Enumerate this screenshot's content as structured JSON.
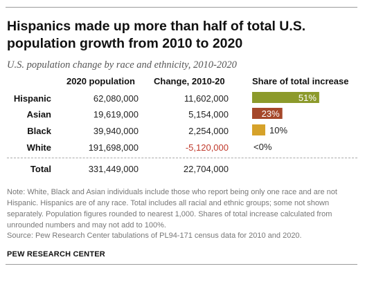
{
  "title": "Hispanics made up more than half of total U.S. population growth from 2010 to 2020",
  "subtitle": "U.S. population change by race and ethnicity, 2010-2020",
  "chart_data": {
    "type": "table",
    "columns": [
      "2020 population",
      "Change, 2010-20",
      "Share of total increase"
    ],
    "rows": [
      {
        "label": "Hispanic",
        "population": "62,080,000",
        "change": "11,602,000",
        "share": 51,
        "share_label": "51%",
        "color": "#8c9a2b"
      },
      {
        "label": "Asian",
        "population": "19,619,000",
        "change": "5,154,000",
        "share": 23,
        "share_label": "23%",
        "color": "#a5472a"
      },
      {
        "label": "Black",
        "population": "39,940,000",
        "change": "2,254,000",
        "share": 10,
        "share_label": "10%",
        "color": "#d6a22a"
      },
      {
        "label": "White",
        "population": "191,698,000",
        "change": "-5,120,000",
        "share": 0,
        "share_label": "<0%",
        "color": "#cccccc"
      }
    ],
    "total": {
      "label": "Total",
      "population": "331,449,000",
      "change": "22,704,000"
    },
    "negative_color": "#c0392b"
  },
  "notes": "Note: White, Black and Asian individuals include those who report being only one race and are not Hispanic. Hispanics are of any race. Total includes all racial and ethnic groups; some not shown separately. Population figures rounded to nearest 1,000. Shares of total increase calculated from unrounded numbers and may not add to 100%.",
  "source": "Source: Pew Research Center tabulations of PL94-171 census data for 2010 and 2020.",
  "organization": "PEW RESEARCH CENTER"
}
